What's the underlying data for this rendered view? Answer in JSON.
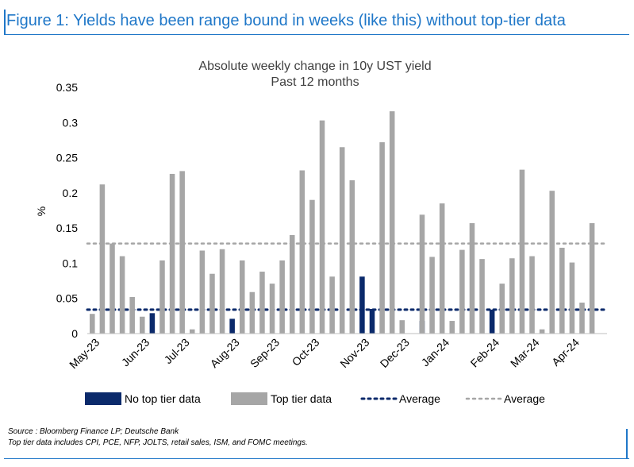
{
  "figure_title": "Figure 1: Yields have been range bound in weeks (like this) without top-tier data",
  "source": "Source : Bloomberg Finance LP; Deutsche Bank",
  "note": "Top tier data includes CPI, PCE, NFP, JOLTS, retail sales, ISM, and FOMC meetings.",
  "colors": {
    "brand": "#1f77c8",
    "no_top_tier": "#0b2a6b",
    "top_tier": "#a6a6a6",
    "average_no_top": "#0b2a6b",
    "average_top": "#a6a6a6"
  },
  "chart_data": {
    "type": "bar",
    "title": "Absolute weekly change in 10y UST yield",
    "subtitle": "Past 12 months",
    "xlabel": "",
    "ylabel": "%",
    "ylim": [
      0,
      0.35
    ],
    "yticks": [
      "0",
      "0.05",
      "0.1",
      "0.15",
      "0.2",
      "0.25",
      "0.3",
      "0.35"
    ],
    "month_labels": [
      "May-23",
      "Jun-23",
      "Jul-23",
      "Aug-23",
      "Sep-23",
      "Oct-23",
      "Nov-23",
      "Dec-23",
      "Jan-24",
      "Feb-24",
      "Mar-24",
      "Apr-24"
    ],
    "month_label_weeks": [
      0,
      5,
      9,
      14,
      18,
      22,
      27,
      31,
      35,
      40,
      44,
      48
    ],
    "grid": false,
    "legend_position": "bottom",
    "series": [
      {
        "name": "No top tier data",
        "values": [
          null,
          null,
          null,
          null,
          null,
          null,
          0.029,
          null,
          null,
          null,
          null,
          null,
          null,
          null,
          0.021,
          null,
          null,
          null,
          null,
          null,
          null,
          null,
          null,
          null,
          null,
          null,
          null,
          0.081,
          0.035,
          null,
          null,
          null,
          null,
          0.018,
          null,
          null,
          null,
          null,
          null,
          null,
          0.034,
          null,
          null,
          null,
          null,
          null,
          null,
          null,
          null,
          null,
          null,
          null
        ]
      },
      {
        "name": "Top tier data",
        "values": [
          0.028,
          0.212,
          0.128,
          0.11,
          0.052,
          0.024,
          null,
          0.104,
          0.227,
          0.231,
          0.006,
          0.118,
          0.085,
          0.12,
          null,
          0.104,
          0.059,
          0.088,
          0.071,
          0.104,
          0.14,
          0.232,
          0.19,
          0.303,
          0.081,
          0.265,
          0.218,
          null,
          null,
          0.272,
          0.316,
          0.019,
          null,
          0.169,
          0.109,
          0.185,
          0.018,
          0.119,
          0.157,
          0.106,
          null,
          0.071,
          0.107,
          0.233,
          0.11,
          0.006,
          0.203,
          0.122,
          0.101,
          0.044,
          0.157,
          null
        ]
      }
    ],
    "averages": [
      {
        "name": "Average",
        "value": 0.034
      },
      {
        "name": "Average",
        "value": 0.128
      }
    ]
  }
}
